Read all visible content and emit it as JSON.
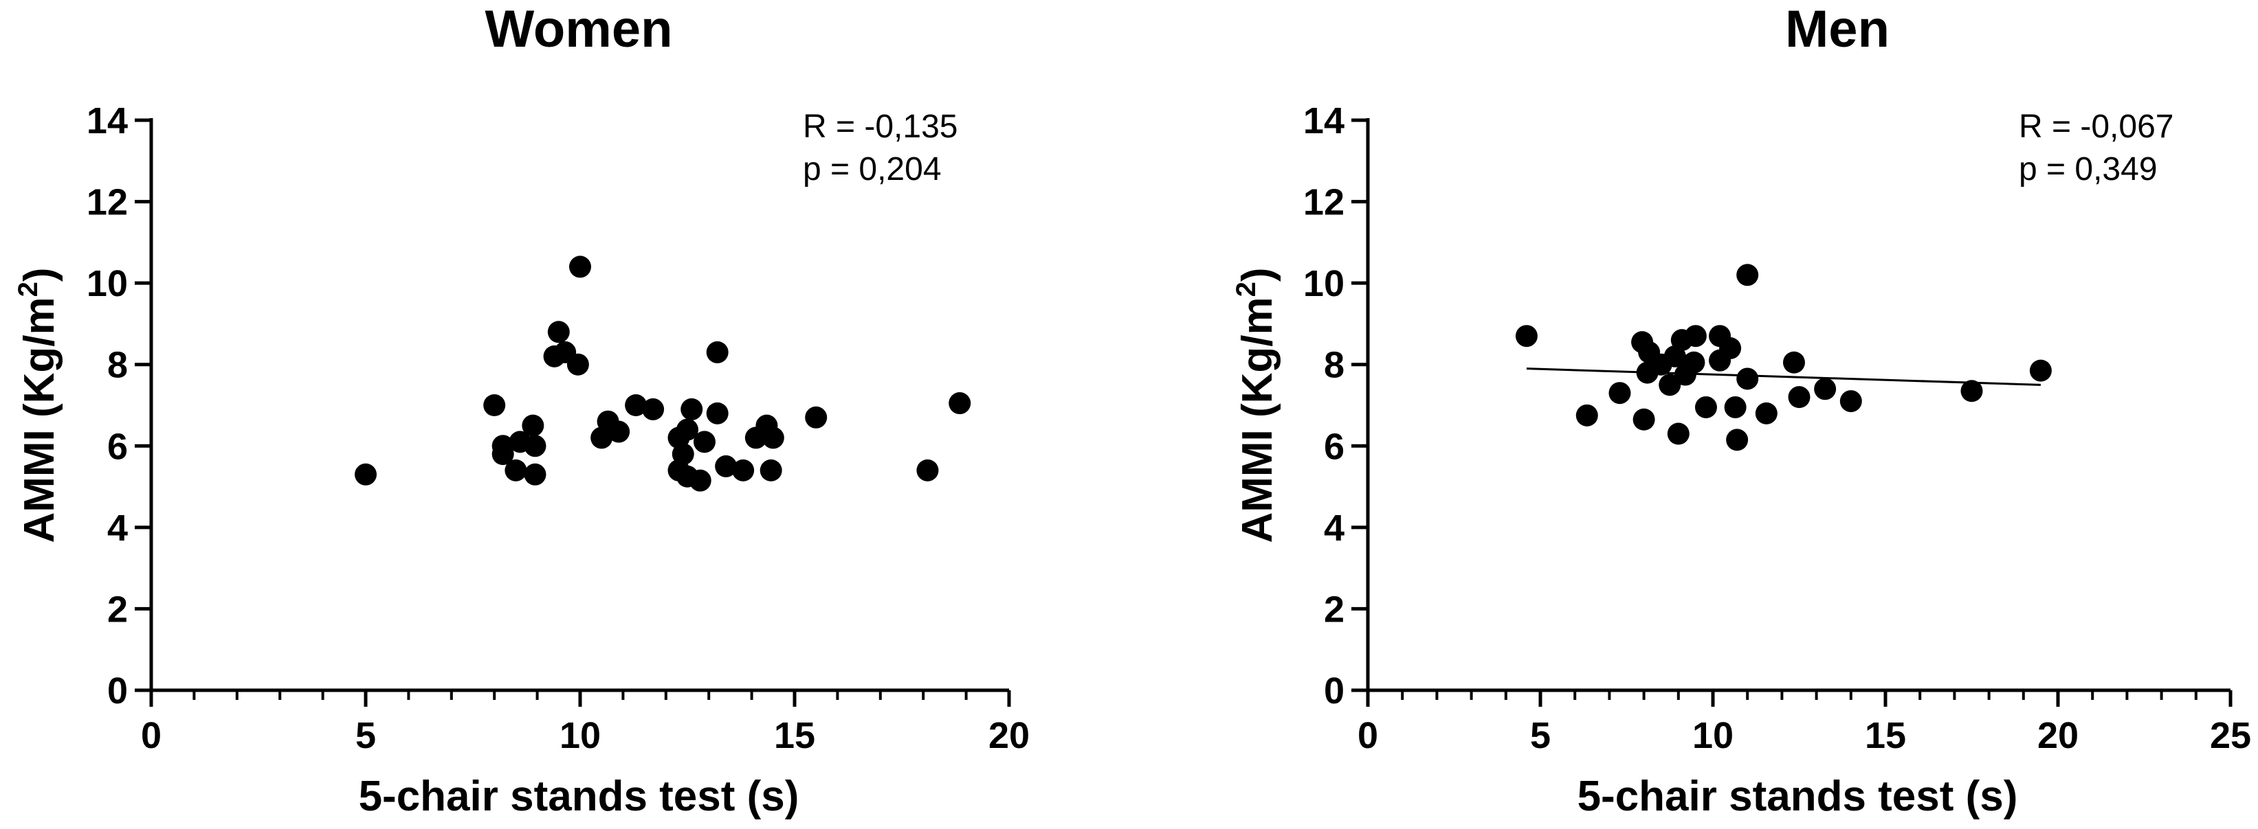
{
  "chart_data": [
    {
      "type": "scatter",
      "title": "Women",
      "xlabel": "5-chair stands test (s)",
      "ylabel": "AMMI (Kg/m²)",
      "ylabel_base": "AMMI (Kg/m",
      "ylabel_sup": "2",
      "ylabel_end": ")",
      "xlim": [
        0,
        20
      ],
      "ylim": [
        0,
        14
      ],
      "x_ticks": [
        "0",
        "5",
        "10",
        "15",
        "20"
      ],
      "y_ticks": [
        "0",
        "2",
        "4",
        "6",
        "8",
        "10",
        "12",
        "14"
      ],
      "stats": [
        "R = -0,135",
        "p = 0,204"
      ],
      "trendline": null,
      "marker_color": "#000000",
      "points": [
        {
          "x": 5.0,
          "y": 5.3
        },
        {
          "x": 8.0,
          "y": 7.0
        },
        {
          "x": 8.2,
          "y": 6.0
        },
        {
          "x": 8.2,
          "y": 5.8
        },
        {
          "x": 8.5,
          "y": 5.4
        },
        {
          "x": 8.6,
          "y": 6.1
        },
        {
          "x": 8.9,
          "y": 6.5
        },
        {
          "x": 8.95,
          "y": 6.0
        },
        {
          "x": 8.95,
          "y": 5.3
        },
        {
          "x": 9.5,
          "y": 8.8
        },
        {
          "x": 9.4,
          "y": 8.2
        },
        {
          "x": 9.65,
          "y": 8.3
        },
        {
          "x": 9.95,
          "y": 8.0
        },
        {
          "x": 10.0,
          "y": 10.4
        },
        {
          "x": 10.5,
          "y": 6.2
        },
        {
          "x": 10.65,
          "y": 6.6
        },
        {
          "x": 10.9,
          "y": 6.35
        },
        {
          "x": 11.3,
          "y": 7.0
        },
        {
          "x": 11.7,
          "y": 6.9
        },
        {
          "x": 12.3,
          "y": 6.2
        },
        {
          "x": 12.3,
          "y": 5.4
        },
        {
          "x": 12.4,
          "y": 5.8
        },
        {
          "x": 12.5,
          "y": 6.4
        },
        {
          "x": 12.6,
          "y": 6.9
        },
        {
          "x": 12.5,
          "y": 5.25
        },
        {
          "x": 12.8,
          "y": 5.15
        },
        {
          "x": 12.9,
          "y": 6.1
        },
        {
          "x": 13.2,
          "y": 6.8
        },
        {
          "x": 13.2,
          "y": 8.3
        },
        {
          "x": 13.4,
          "y": 5.5
        },
        {
          "x": 13.8,
          "y": 5.4
        },
        {
          "x": 14.1,
          "y": 6.2
        },
        {
          "x": 14.35,
          "y": 6.5
        },
        {
          "x": 14.5,
          "y": 6.2
        },
        {
          "x": 14.45,
          "y": 5.4
        },
        {
          "x": 15.5,
          "y": 6.7
        },
        {
          "x": 18.1,
          "y": 5.4
        },
        {
          "x": 18.85,
          "y": 7.05
        }
      ]
    },
    {
      "type": "scatter",
      "title": "Men",
      "xlabel": "5-chair stands test (s)",
      "ylabel": "AMMI (Kg/m²)",
      "ylabel_base": "AMMI (Kg/m",
      "ylabel_sup": "2",
      "ylabel_end": ")",
      "xlim": [
        0,
        25
      ],
      "ylim": [
        0,
        14
      ],
      "x_ticks": [
        "0",
        "5",
        "10",
        "15",
        "20",
        "25"
      ],
      "y_ticks": [
        "0",
        "2",
        "4",
        "6",
        "8",
        "10",
        "12",
        "14"
      ],
      "stats": [
        "R = -0,067",
        "p = 0,349"
      ],
      "trendline": {
        "x": [
          4.6,
          19.5
        ],
        "y": [
          7.9,
          7.5
        ]
      },
      "marker_color": "#000000",
      "points": [
        {
          "x": 4.6,
          "y": 8.7
        },
        {
          "x": 6.35,
          "y": 6.75
        },
        {
          "x": 7.3,
          "y": 7.3
        },
        {
          "x": 7.95,
          "y": 8.55
        },
        {
          "x": 8.0,
          "y": 6.65
        },
        {
          "x": 8.1,
          "y": 7.8
        },
        {
          "x": 8.15,
          "y": 8.3
        },
        {
          "x": 8.5,
          "y": 8.0
        },
        {
          "x": 8.75,
          "y": 7.5
        },
        {
          "x": 8.9,
          "y": 8.2
        },
        {
          "x": 9.0,
          "y": 6.3
        },
        {
          "x": 9.1,
          "y": 8.6
        },
        {
          "x": 9.2,
          "y": 7.75
        },
        {
          "x": 9.45,
          "y": 8.05
        },
        {
          "x": 9.5,
          "y": 8.7
        },
        {
          "x": 9.8,
          "y": 6.95
        },
        {
          "x": 10.2,
          "y": 8.7
        },
        {
          "x": 10.2,
          "y": 8.1
        },
        {
          "x": 10.5,
          "y": 8.4
        },
        {
          "x": 10.65,
          "y": 6.95
        },
        {
          "x": 10.7,
          "y": 6.15
        },
        {
          "x": 11.0,
          "y": 7.65
        },
        {
          "x": 11.0,
          "y": 10.2
        },
        {
          "x": 11.55,
          "y": 6.8
        },
        {
          "x": 12.35,
          "y": 8.05
        },
        {
          "x": 12.5,
          "y": 7.2
        },
        {
          "x": 13.25,
          "y": 7.4
        },
        {
          "x": 14.0,
          "y": 7.1
        },
        {
          "x": 17.5,
          "y": 7.35
        },
        {
          "x": 19.5,
          "y": 7.85
        }
      ]
    }
  ]
}
